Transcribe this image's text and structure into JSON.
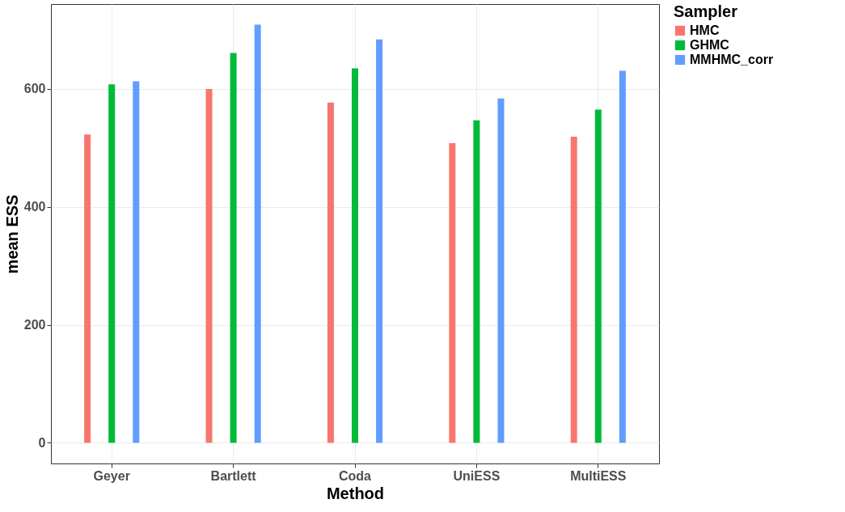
{
  "chart_data": {
    "type": "bar",
    "xlabel": "Method",
    "ylabel": "mean ESS",
    "legend_title": "Sampler",
    "categories": [
      "Geyer",
      "Bartlett",
      "Coda",
      "UniESS",
      "MultiESS"
    ],
    "series": [
      {
        "name": "HMC",
        "color": "#f8766d",
        "values": [
          523,
          600,
          577,
          508,
          519
        ]
      },
      {
        "name": "GHMC",
        "color": "#00ba38",
        "values": [
          608,
          661,
          635,
          547,
          565
        ]
      },
      {
        "name": "MMHMC_corr",
        "color": "#619cff",
        "values": [
          613,
          709,
          684,
          584,
          631
        ]
      }
    ],
    "ylim": [
      -35,
      744
    ],
    "yticks": [
      0,
      200,
      400,
      600
    ],
    "grid": true,
    "legend": "right"
  }
}
